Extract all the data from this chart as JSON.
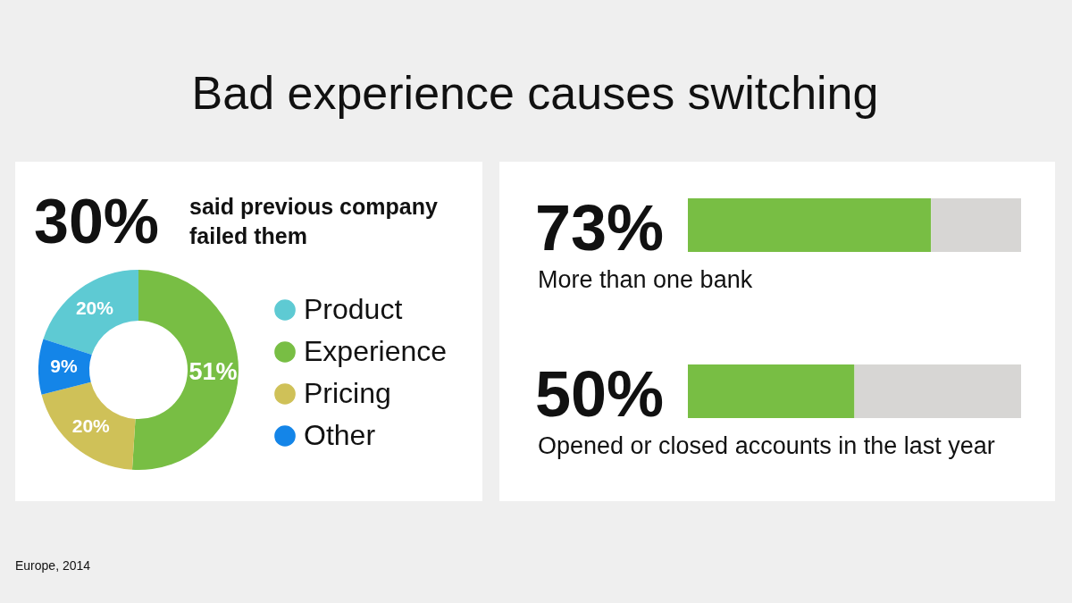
{
  "chart_data": [
    {
      "type": "donut",
      "title": "Bad experience causes switching",
      "categories": [
        "Product",
        "Experience",
        "Pricing",
        "Other"
      ],
      "values": [
        20,
        51,
        20,
        9
      ],
      "colors": [
        "#5ecad3",
        "#78be44",
        "#cfc158",
        "#1485e8"
      ],
      "value_labels": [
        "20%",
        "51%",
        "20%",
        "9%"
      ],
      "legend": "right",
      "annotations": [
        "30%",
        "said previous company\nfailed them",
        "Europe, 2014"
      ]
    },
    {
      "type": "bar",
      "orientation": "horizontal",
      "stacked": true,
      "categories": [
        "More than one bank",
        "Opened or closed accounts in the last year"
      ],
      "series": [
        {
          "color": "#78be44",
          "values": [
            73,
            50
          ],
          "value_labels": [
            "73%",
            "50%"
          ]
        },
        {
          "color": "#d7d6d4",
          "values": [
            27,
            50
          ]
        }
      ],
      "xlim": [
        0,
        100
      ],
      "tick_labels": false
    }
  ]
}
